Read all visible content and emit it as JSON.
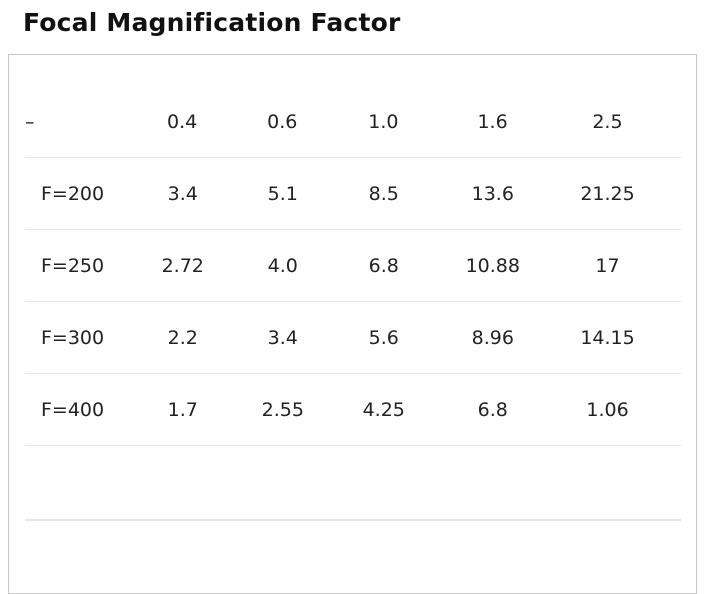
{
  "title": "Focal Magnification Factor",
  "table": {
    "header": [
      "–",
      "0.4",
      "0.6",
      "1.0",
      "1.6",
      "2.5"
    ],
    "rows": [
      [
        "F=200",
        "3.4",
        "5.1",
        "8.5",
        "13.6",
        "21.25"
      ],
      [
        "F=250",
        "2.72",
        "4.0",
        "6.8",
        "10.88",
        "17"
      ],
      [
        "F=300",
        "2.2",
        "3.4",
        "5.6",
        "8.96",
        "14.15"
      ],
      [
        "F=400",
        "1.7",
        "2.55",
        "4.25",
        "6.8",
        "1.06"
      ]
    ]
  }
}
